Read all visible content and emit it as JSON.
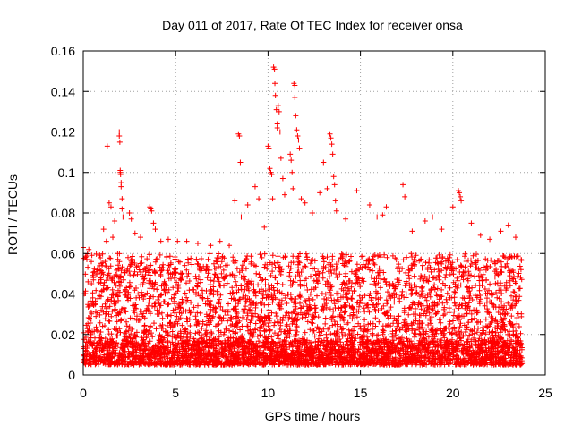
{
  "chart_data": {
    "type": "scatter",
    "title": "Day 011 of 2017, Rate Of TEC Index for receiver onsa",
    "xlabel": "GPS time / hours",
    "ylabel": "ROTI / TECUs",
    "xlim": [
      0,
      25
    ],
    "ylim": [
      0,
      0.16
    ],
    "x_ticks": [
      0,
      5,
      10,
      15,
      20,
      25
    ],
    "x_tick_labels": [
      "0",
      "5",
      "10",
      "15",
      "20",
      "25"
    ],
    "y_ticks": [
      0,
      0.02,
      0.04,
      0.06,
      0.08,
      0.1,
      0.12,
      0.14,
      0.16
    ],
    "y_tick_labels": [
      "0",
      "0.02",
      "0.04",
      "0.06",
      "0.08",
      "0.1",
      "0.12",
      "0.14",
      "0.16"
    ],
    "grid": true,
    "grid_style": "dotted",
    "marker": "plus",
    "marker_color": "#ff0000",
    "dense_band": {
      "x_range": [
        0,
        23.75
      ],
      "typical_low": 0.005,
      "typical_high": 0.06,
      "baseline": 0.012
    },
    "points": [
      [
        0.0,
        0.063
      ],
      [
        0.3,
        0.062
      ],
      [
        0.6,
        0.051
      ],
      [
        1.3,
        0.113
      ],
      [
        1.4,
        0.085
      ],
      [
        1.5,
        0.083
      ],
      [
        1.7,
        0.076
      ],
      [
        1.95,
        0.12
      ],
      [
        1.95,
        0.118
      ],
      [
        1.98,
        0.115
      ],
      [
        2.0,
        0.101
      ],
      [
        2.0,
        0.1
      ],
      [
        2.02,
        0.099
      ],
      [
        2.05,
        0.095
      ],
      [
        2.05,
        0.093
      ],
      [
        2.1,
        0.087
      ],
      [
        2.1,
        0.082
      ],
      [
        2.15,
        0.078
      ],
      [
        1.1,
        0.072
      ],
      [
        1.25,
        0.066
      ],
      [
        1.6,
        0.068
      ],
      [
        2.5,
        0.08
      ],
      [
        2.6,
        0.077
      ],
      [
        2.8,
        0.07
      ],
      [
        3.1,
        0.068
      ],
      [
        3.6,
        0.083
      ],
      [
        3.65,
        0.082
      ],
      [
        3.7,
        0.081
      ],
      [
        3.8,
        0.075
      ],
      [
        3.9,
        0.072
      ],
      [
        4.2,
        0.066
      ],
      [
        4.6,
        0.067
      ],
      [
        5.1,
        0.066
      ],
      [
        5.6,
        0.066
      ],
      [
        6.2,
        0.065
      ],
      [
        6.9,
        0.064
      ],
      [
        7.4,
        0.066
      ],
      [
        7.9,
        0.064
      ],
      [
        8.2,
        0.086
      ],
      [
        8.4,
        0.119
      ],
      [
        8.45,
        0.118
      ],
      [
        8.5,
        0.105
      ],
      [
        8.55,
        0.078
      ],
      [
        8.9,
        0.084
      ],
      [
        9.3,
        0.093
      ],
      [
        9.5,
        0.087
      ],
      [
        9.8,
        0.073
      ],
      [
        10.0,
        0.113
      ],
      [
        10.05,
        0.112
      ],
      [
        10.1,
        0.102
      ],
      [
        10.15,
        0.1
      ],
      [
        10.2,
        0.099
      ],
      [
        10.25,
        0.087
      ],
      [
        10.3,
        0.152
      ],
      [
        10.35,
        0.151
      ],
      [
        10.37,
        0.144
      ],
      [
        10.4,
        0.138
      ],
      [
        10.45,
        0.131
      ],
      [
        10.5,
        0.124
      ],
      [
        10.5,
        0.122
      ],
      [
        10.55,
        0.133
      ],
      [
        10.6,
        0.13
      ],
      [
        10.65,
        0.12
      ],
      [
        10.7,
        0.107
      ],
      [
        10.8,
        0.097
      ],
      [
        10.9,
        0.089
      ],
      [
        11.2,
        0.109
      ],
      [
        11.25,
        0.106
      ],
      [
        11.3,
        0.1
      ],
      [
        11.35,
        0.092
      ],
      [
        11.4,
        0.144
      ],
      [
        11.45,
        0.143
      ],
      [
        11.45,
        0.137
      ],
      [
        11.5,
        0.128
      ],
      [
        11.55,
        0.121
      ],
      [
        11.6,
        0.118
      ],
      [
        11.65,
        0.116
      ],
      [
        11.7,
        0.112
      ],
      [
        11.8,
        0.087
      ],
      [
        12.0,
        0.085
      ],
      [
        12.4,
        0.08
      ],
      [
        12.8,
        0.09
      ],
      [
        13.0,
        0.105
      ],
      [
        13.2,
        0.092
      ],
      [
        13.35,
        0.119
      ],
      [
        13.4,
        0.117
      ],
      [
        13.45,
        0.114
      ],
      [
        13.5,
        0.109
      ],
      [
        13.55,
        0.098
      ],
      [
        13.6,
        0.094
      ],
      [
        13.65,
        0.086
      ],
      [
        13.7,
        0.081
      ],
      [
        14.2,
        0.077
      ],
      [
        14.8,
        0.091
      ],
      [
        15.5,
        0.084
      ],
      [
        15.9,
        0.078
      ],
      [
        16.2,
        0.079
      ],
      [
        16.4,
        0.083
      ],
      [
        17.3,
        0.094
      ],
      [
        17.4,
        0.088
      ],
      [
        17.8,
        0.071
      ],
      [
        18.5,
        0.076
      ],
      [
        18.9,
        0.078
      ],
      [
        19.4,
        0.072
      ],
      [
        20.0,
        0.083
      ],
      [
        20.3,
        0.091
      ],
      [
        20.35,
        0.09
      ],
      [
        20.4,
        0.088
      ],
      [
        20.45,
        0.086
      ],
      [
        21.0,
        0.075
      ],
      [
        21.5,
        0.069
      ],
      [
        22.0,
        0.067
      ],
      [
        22.6,
        0.071
      ],
      [
        23.0,
        0.074
      ],
      [
        23.4,
        0.068
      ],
      [
        23.7,
        0.057
      ]
    ]
  }
}
